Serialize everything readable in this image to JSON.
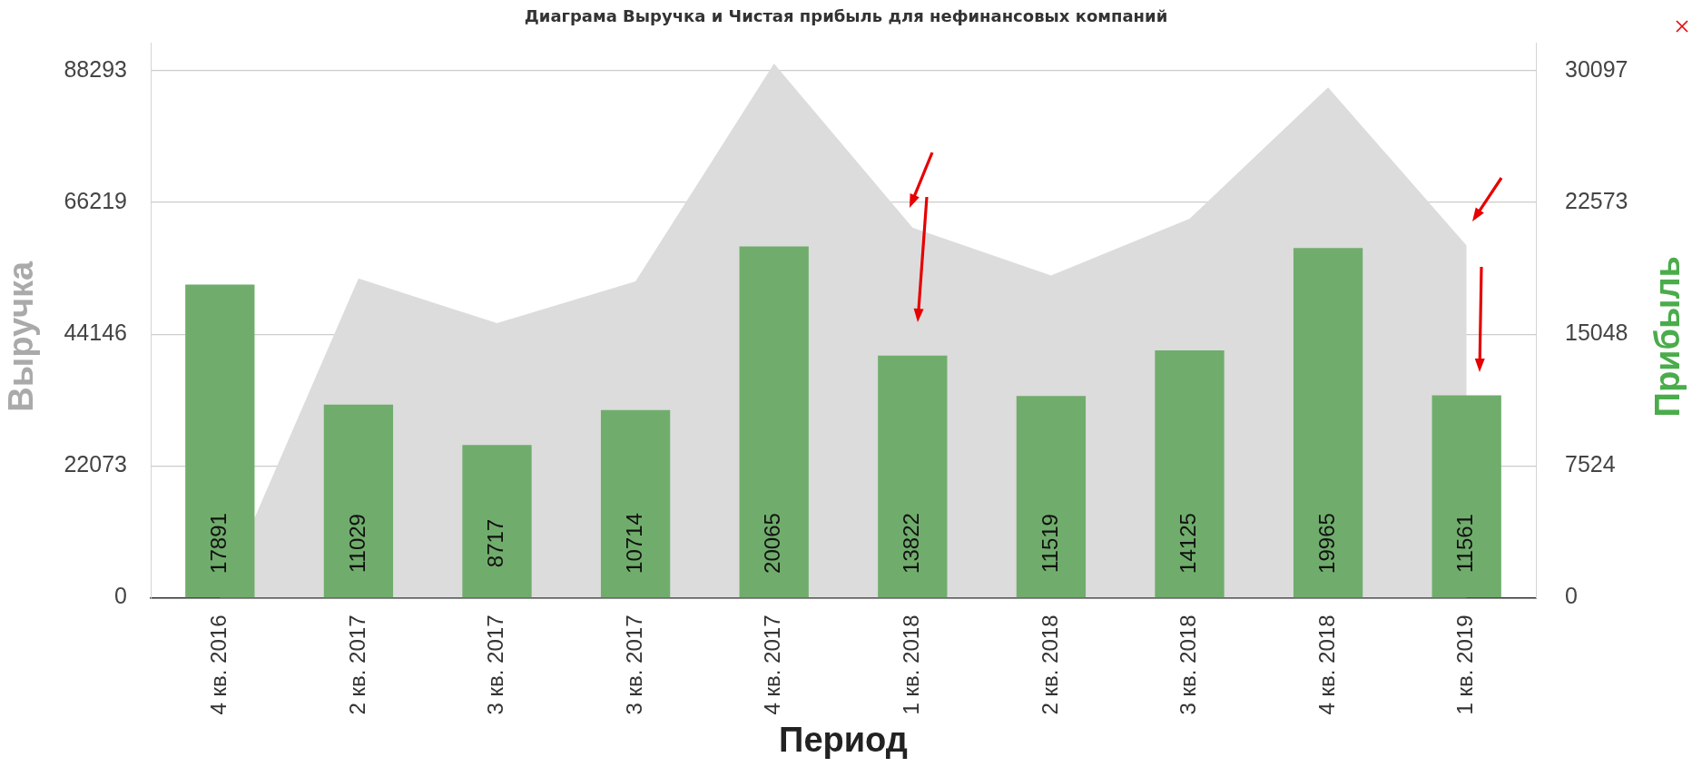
{
  "chart_data": {
    "type": "bar",
    "title": "Диаграма Выручка и Чистая прибыль для нефинансовых компаний",
    "xlabel": "Период",
    "ylabel": "Выручка",
    "y2label": "Прибыль",
    "categories": [
      "4 кв. 2016",
      "2 кв. 2017",
      "3 кв. 2017",
      "3 кв. 2017",
      "4 кв. 2017",
      "1 кв. 2018",
      "2 кв. 2018",
      "3 кв. 2018",
      "4 кв. 2018",
      "1 кв. 2019"
    ],
    "series": [
      {
        "type": "area",
        "color": "#dcdcdc",
        "values": [
          0,
          53500,
          46000,
          53000,
          89500,
          62000,
          54000,
          63500,
          85500,
          59000
        ]
      },
      {
        "axis": "y2",
        "color": "#70ad6c",
        "values": [
          17891,
          11029,
          8717,
          10714,
          20065,
          13822,
          11519,
          14125,
          19965,
          11561
        ],
        "value_labels": [
          "17891",
          "11029",
          "8717",
          "10714",
          "20065",
          "13822",
          "11519",
          "14125",
          "19965",
          "11561"
        ]
      }
    ],
    "ylim": [
      0,
      93000
    ],
    "yticks": [
      0,
      22073,
      44146,
      66219,
      88293
    ],
    "y2lim": [
      0,
      31700
    ],
    "y2ticks": [
      0,
      7524,
      15048,
      22573,
      30097
    ],
    "grid": "y"
  }
}
